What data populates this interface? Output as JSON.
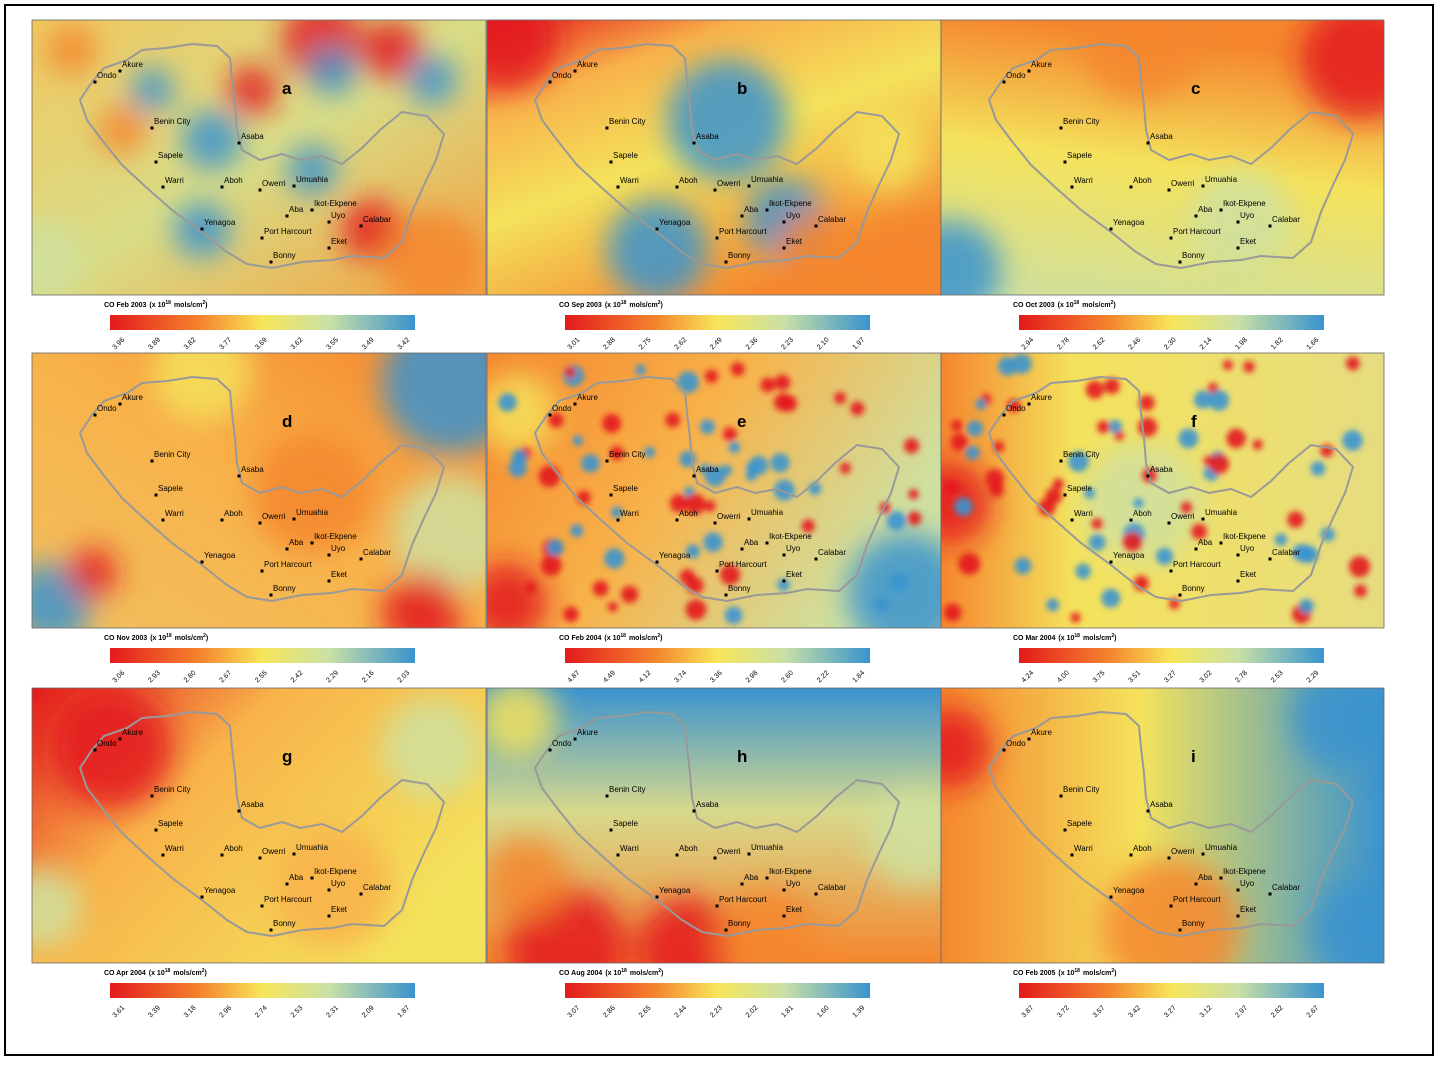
{
  "unit": {
    "prefix": "(x 10",
    "exp": "18",
    "mid": "mols/cm",
    "exp2": "2",
    "suffix": ")"
  },
  "cities": [
    "Ondo",
    "Akure",
    "Benin City",
    "Asaba",
    "Sapele",
    "Warri",
    "Aboh",
    "Owerri",
    "Umuahia",
    "Aba",
    "Ikot-Ekpene",
    "Uyo",
    "Calabar",
    "Yenagoa",
    "Port Harcourt",
    "Eket",
    "Bonny"
  ],
  "panels": [
    {
      "letter": "a",
      "period": "CO Feb 2003",
      "ticks": [
        "3.96",
        "3.89",
        "3.82",
        "3.77",
        "3.69",
        "3.62",
        "3.55",
        "3.49",
        "3.42"
      ]
    },
    {
      "letter": "b",
      "period": "CO Sep 2003",
      "ticks": [
        "3.01",
        "2.88",
        "2.75",
        "2.62",
        "2.49",
        "2.36",
        "2.23",
        "2.10",
        "1.97"
      ]
    },
    {
      "letter": "c",
      "period": "CO Oct 2003",
      "ticks": [
        "2.94",
        "2.78",
        "2.62",
        "2.46",
        "2.30",
        "2.14",
        "1.98",
        "1.82",
        "1.66"
      ]
    },
    {
      "letter": "d",
      "period": "CO Nov 2003",
      "ticks": [
        "3.06",
        "2.93",
        "2.80",
        "2.67",
        "2.55",
        "2.42",
        "2.29",
        "2.16",
        "2.03"
      ]
    },
    {
      "letter": "e",
      "period": "CO Feb 2004",
      "ticks": [
        "4.87",
        "4.49",
        "4.12",
        "3.74",
        "3.36",
        "2.98",
        "2.60",
        "2.22",
        "1.84"
      ]
    },
    {
      "letter": "f",
      "period": "CO Mar 2004",
      "ticks": [
        "4.24",
        "4.00",
        "3.75",
        "3.51",
        "3.27",
        "3.02",
        "2.78",
        "2.53",
        "2.29"
      ]
    },
    {
      "letter": "g",
      "period": "CO Apr 2004",
      "ticks": [
        "3.61",
        "3.39",
        "3.18",
        "2.96",
        "2.74",
        "2.53",
        "2.31",
        "2.09",
        "1.87"
      ]
    },
    {
      "letter": "h",
      "period": "CO Aug 2004",
      "ticks": [
        "3.07",
        "2.86",
        "2.65",
        "2.44",
        "2.23",
        "2.02",
        "1.81",
        "1.60",
        "1.39"
      ]
    },
    {
      "letter": "i",
      "period": "CO Feb 2005",
      "ticks": [
        "3.87",
        "3.72",
        "3.57",
        "3.42",
        "3.27",
        "3.12",
        "2.97",
        "2.82",
        "2.67"
      ]
    }
  ]
}
